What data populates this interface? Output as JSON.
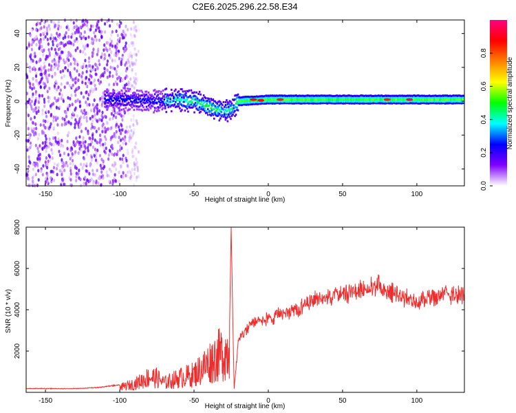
{
  "figure": {
    "title": "C2E6.2025.296.22.58.E34"
  },
  "colors": {
    "snr_line": "#ee2c2c",
    "frame": "#000000",
    "background": "#ffffff"
  },
  "chart_data": [
    {
      "type": "heatmap",
      "title": "C2E6.2025.296.22.58.E34",
      "xlabel": "Height of straight line (km)",
      "ylabel": "Frequency (Hz)",
      "xlim": [
        -163,
        132
      ],
      "ylim": [
        -50,
        48
      ],
      "xticks": [
        -150,
        -100,
        -50,
        0,
        50,
        100
      ],
      "yticks": [
        -40,
        -20,
        0,
        20,
        40
      ],
      "colorbar": {
        "label": "Normalized spectral amplitude",
        "range": [
          0,
          1
        ],
        "ticks": [
          "0.0",
          "0.2",
          "0.4",
          "0.6",
          "0.8"
        ],
        "colormap": [
          "#ffffff",
          "#8000ff",
          "#0000ff",
          "#00ffff",
          "#00ff00",
          "#ffff00",
          "#ff8000",
          "#ff0000",
          "#ff0080"
        ]
      },
      "description_points": {
        "noise_region_x": [
          -163,
          -95
        ],
        "band_center_hz": [
          [
            -100,
            1
          ],
          [
            -80,
            0
          ],
          [
            -60,
            1
          ],
          [
            -50,
            0
          ],
          [
            -40,
            -3
          ],
          [
            -30,
            -6
          ],
          [
            -25,
            -5
          ],
          [
            -20,
            0
          ],
          [
            0,
            1
          ],
          [
            20,
            1
          ],
          [
            50,
            1
          ],
          [
            80,
            1
          ],
          [
            100,
            1
          ],
          [
            132,
            1
          ]
        ],
        "strong_peaks": [
          {
            "x": -10,
            "f": 1,
            "amp": 0.9
          },
          {
            "x": -5,
            "f": 0.5,
            "amp": 0.9
          },
          {
            "x": 8,
            "f": 1,
            "amp": 0.85
          },
          {
            "x": 80,
            "f": 1,
            "amp": 0.85
          },
          {
            "x": 95,
            "f": 1,
            "amp": 0.95
          }
        ]
      }
    },
    {
      "type": "line",
      "xlabel": "Height of straight line (km)",
      "ylabel": "SNR (10 * v/v)",
      "xlim": [
        -163,
        132
      ],
      "ylim": [
        0,
        8000
      ],
      "xticks": [
        -150,
        -100,
        -50,
        0,
        50,
        100
      ],
      "yticks": [
        2000,
        4000,
        6000,
        8000
      ],
      "series": [
        {
          "envelope": [
            [
              -163,
              200
            ],
            [
              -150,
              200
            ],
            [
              -130,
              200
            ],
            [
              -115,
              250
            ],
            [
              -100,
              400
            ],
            [
              -90,
              700
            ],
            [
              -85,
              1000
            ],
            [
              -80,
              1300
            ],
            [
              -75,
              1200
            ],
            [
              -70,
              800
            ],
            [
              -60,
              1200
            ],
            [
              -50,
              1500
            ],
            [
              -45,
              2000
            ],
            [
              -40,
              2500
            ],
            [
              -35,
              3000
            ],
            [
              -30,
              3300
            ],
            [
              -26,
              3500
            ],
            [
              -25,
              8000
            ],
            [
              -23,
              200
            ],
            [
              -20,
              2800
            ],
            [
              -15,
              3300
            ],
            [
              -10,
              3700
            ],
            [
              -5,
              3800
            ],
            [
              0,
              3800
            ],
            [
              10,
              4100
            ],
            [
              20,
              4400
            ],
            [
              30,
              4800
            ],
            [
              40,
              5000
            ],
            [
              50,
              5100
            ],
            [
              60,
              5300
            ],
            [
              70,
              5500
            ],
            [
              75,
              5600
            ],
            [
              80,
              5300
            ],
            [
              90,
              5000
            ],
            [
              100,
              4800
            ],
            [
              110,
              4900
            ],
            [
              120,
              5100
            ],
            [
              132,
              5100
            ]
          ]
        }
      ]
    }
  ]
}
